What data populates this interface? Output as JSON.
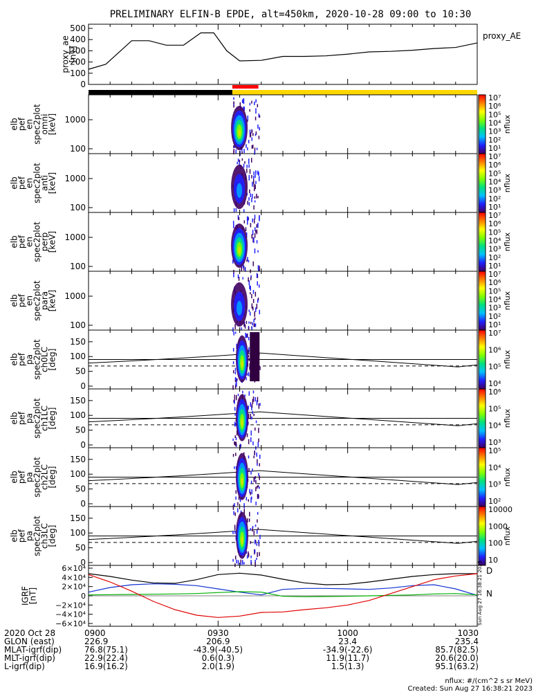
{
  "title": "PRELIMINARY ELFIN-B EPDE, alt=450km, 2020-10-28 09:00 to 10:30",
  "colors": {
    "ae_line": "#000000",
    "bar_black": "#000000",
    "bar_red": "#ff0000",
    "bar_yellow": "#ffd700",
    "igrf_x": "#000000",
    "igrf_y": "#1030d0",
    "igrf_z": "#00b000",
    "igrf_total": "#e00000"
  },
  "ae_panel": {
    "ylabel": [
      "proxy_ae",
      "[nT]"
    ],
    "legend": "proxy_AE",
    "ylim": [
      0,
      500
    ],
    "ticks": [
      "500",
      "400",
      "300",
      "200",
      "100",
      "0"
    ]
  },
  "spec_panels": [
    {
      "ylabel": [
        "elb",
        "pef",
        "en",
        "spec2plot",
        "omni",
        "[keV]"
      ],
      "ticks": [
        "1000",
        "100"
      ],
      "cb_ticks": [
        "10⁷",
        "10⁶",
        "10⁵",
        "10⁴",
        "10³",
        "10²",
        "10¹"
      ],
      "cb_label": "nflux"
    },
    {
      "ylabel": [
        "elb",
        "pef",
        "en",
        "spec2plot",
        "anti",
        "[keV]"
      ],
      "ticks": [
        "1000",
        "100"
      ],
      "cb_ticks": [
        "10⁷",
        "10⁶",
        "10⁵",
        "10⁴",
        "10³",
        "10²",
        "10¹"
      ],
      "cb_label": "nflux"
    },
    {
      "ylabel": [
        "elb",
        "pef",
        "en",
        "spec2plot",
        "perp",
        "[keV]"
      ],
      "ticks": [
        "1000",
        "100"
      ],
      "cb_ticks": [
        "10⁷",
        "10⁶",
        "10⁵",
        "10⁴",
        "10³",
        "10²",
        "10¹"
      ],
      "cb_label": "nflux"
    },
    {
      "ylabel": [
        "elb",
        "pef",
        "en",
        "spec2plot",
        "para",
        "[keV]"
      ],
      "ticks": [
        "1000",
        "100"
      ],
      "cb_ticks": [
        "10⁷",
        "10⁶",
        "10⁵",
        "10⁴",
        "10³",
        "10²",
        "10¹"
      ],
      "cb_label": "nflux"
    }
  ],
  "pa_panels": [
    {
      "ylabel": [
        "elb",
        "pef",
        "pa",
        "spec2plot",
        "ch0LC",
        "[deg]"
      ],
      "ticks": [
        "150",
        "100",
        "50",
        "0"
      ],
      "cb_ticks": [
        "10⁷",
        "10⁶",
        "10⁵",
        "10⁴"
      ],
      "cb_label": "nflux"
    },
    {
      "ylabel": [
        "elb",
        "pef",
        "pa",
        "spec2plot",
        "ch1LC",
        "[deg]"
      ],
      "ticks": [
        "150",
        "100",
        "50",
        "0"
      ],
      "cb_ticks": [
        "10⁶",
        "10⁵",
        "10⁴",
        "10³"
      ],
      "cb_label": "nflux"
    },
    {
      "ylabel": [
        "elb",
        "pef",
        "pa",
        "spec2plot",
        "ch2LC",
        "[deg]"
      ],
      "ticks": [
        "150",
        "100",
        "50",
        "0"
      ],
      "cb_ticks": [
        "10⁵",
        "10⁴",
        "10³",
        "10²"
      ],
      "cb_label": "nflux"
    },
    {
      "ylabel": [
        "elb",
        "pef",
        "pa",
        "spec2plot",
        "ch3LC",
        "[deg]"
      ],
      "ticks": [
        "150",
        "100",
        "50",
        "0"
      ],
      "cb_ticks": [
        "10000",
        "1000",
        "100",
        "10"
      ],
      "cb_label": "nflux"
    }
  ],
  "igrf_panel": {
    "ylabel": [
      "IGRF",
      "[nT]"
    ],
    "ticks": [
      "6×10⁴",
      "4×10⁴",
      "2×10⁴",
      "0",
      "−2×10⁴",
      "−4×10⁴",
      "−6×10⁴"
    ],
    "legend": [
      "D",
      "N"
    ],
    "timestamp": "Sun Aug 27 16:38:21 2023"
  },
  "orbit_table": {
    "rows": [
      {
        "label": "2020 Oct 28",
        "values": [
          "0900",
          "0930",
          "1000",
          "1030"
        ]
      },
      {
        "label": "GLON (east)",
        "values": [
          "226.9",
          "206.9",
          "23.4",
          "235.4"
        ]
      },
      {
        "label": "MLAT-igrf(dip)",
        "values": [
          "76.8(75.1)",
          "-43.9(-40.5)",
          "-34.9(-22.6)",
          "85.7(82.5)"
        ]
      },
      {
        "label": "MLT-igrf(dip)",
        "values": [
          "22.9(22.4)",
          "0.6(0.3)",
          "11.9(11.7)",
          "20.6(20.0)"
        ]
      },
      {
        "label": "L-igrf(dip)",
        "values": [
          "16.9(16.2)",
          "2.0(1.9)",
          "1.5(1.3)",
          "95.1(63.2)"
        ]
      }
    ]
  },
  "footer": {
    "units": "nflux: #/(cm^2 s sr MeV)",
    "created": "Created: Sun Aug 27 16:38:21 2023"
  },
  "chart_data": [
    {
      "type": "line",
      "x": [
        "09:00",
        "09:04",
        "09:10",
        "09:14",
        "09:18",
        "09:22",
        "09:26",
        "09:29",
        "09:32",
        "09:35",
        "09:40",
        "09:45",
        "09:50",
        "09:55",
        "10:00",
        "10:05",
        "10:10",
        "10:15",
        "10:20",
        "10:25",
        "10:30"
      ],
      "series": [
        {
          "name": "proxy_AE",
          "values": [
            135,
            180,
            390,
            390,
            350,
            350,
            460,
            460,
            300,
            210,
            215,
            250,
            250,
            255,
            270,
            290,
            295,
            305,
            320,
            330,
            370
          ]
        }
      ],
      "ylim": [
        0,
        500
      ]
    },
    {
      "type": "line",
      "x": [
        "09:00",
        "09:05",
        "09:10",
        "09:15",
        "09:20",
        "09:25",
        "09:30",
        "09:35",
        "09:40",
        "09:45",
        "09:50",
        "09:55",
        "10:00",
        "10:05",
        "10:10",
        "10:15",
        "10:20",
        "10:25",
        "10:30"
      ],
      "series": [
        {
          "values": [
            48000,
            42000,
            34000,
            28000,
            27000,
            35000,
            46000,
            49000,
            45000,
            36000,
            28000,
            24000,
            25000,
            30000,
            36000,
            42000,
            46000,
            48000,
            48000
          ]
        },
        {
          "values": [
            8000,
            18000,
            24000,
            26000,
            25000,
            22000,
            15000,
            8000,
            2000,
            14000,
            16000,
            16000,
            15000,
            14000,
            17000,
            22000,
            24000,
            15000,
            1000
          ]
        },
        {
          "values": [
            2000,
            2500,
            3000,
            3500,
            4000,
            5000,
            7000,
            9000,
            8000,
            -1000,
            -2000,
            -1500,
            -1000,
            0,
            1000,
            2000,
            4000,
            5000,
            2000
          ]
        },
        {
          "values": [
            46000,
            30000,
            10000,
            -12000,
            -30000,
            -42000,
            -47000,
            -44000,
            -36000,
            -35000,
            -30000,
            -26000,
            -20000,
            -10000,
            5000,
            20000,
            35000,
            43000,
            48000
          ]
        }
      ],
      "ylim": [
        -60000,
        60000
      ]
    }
  ]
}
